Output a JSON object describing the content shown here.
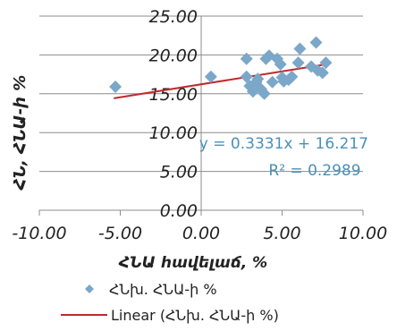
{
  "chart_data": {
    "type": "scatter",
    "xlabel": "ՀՆԱ հավելաճ, %",
    "ylabel": "ՀՆ, ՀՆԱ-ի %",
    "xlim": [
      -10,
      10
    ],
    "ylim": [
      0,
      25
    ],
    "x_ticks": [
      -10,
      -5,
      0,
      5,
      10
    ],
    "y_ticks": [
      0,
      5,
      10,
      15,
      20,
      25
    ],
    "x_tick_labels": [
      "-10.00",
      "-5.00",
      "0.00",
      "5.00",
      "10.00"
    ],
    "y_tick_labels": [
      "0.00",
      "5.00",
      "10.00",
      "15.00",
      "20.00",
      "25.00"
    ],
    "grid": "horizontal",
    "legend_placement": "bottom",
    "series": [
      {
        "name": "ՀՆխ. ՀՆԱ-ի %",
        "type": "scatter",
        "marker": "diamond",
        "color": "#7ba7c9",
        "points": [
          [
            -5.3,
            15.9
          ],
          [
            0.6,
            17.2
          ],
          [
            2.8,
            19.5
          ],
          [
            2.8,
            17.2
          ],
          [
            3.0,
            16.0
          ],
          [
            3.2,
            15.3
          ],
          [
            3.4,
            16.5
          ],
          [
            3.5,
            16.9
          ],
          [
            3.7,
            15.6
          ],
          [
            3.9,
            15.0
          ],
          [
            4.0,
            19.5
          ],
          [
            4.2,
            19.9
          ],
          [
            4.4,
            16.5
          ],
          [
            4.7,
            19.5
          ],
          [
            4.9,
            18.8
          ],
          [
            5.0,
            17.1
          ],
          [
            5.1,
            16.6
          ],
          [
            5.4,
            16.8
          ],
          [
            5.6,
            17.2
          ],
          [
            6.0,
            19.0
          ],
          [
            6.1,
            20.8
          ],
          [
            6.8,
            18.5
          ],
          [
            7.1,
            21.6
          ],
          [
            7.2,
            18.0
          ],
          [
            7.5,
            17.7
          ],
          [
            7.7,
            19.0
          ]
        ]
      },
      {
        "name": "Linear (ՀՆխ. ՀՆԱ-ի %)",
        "type": "line",
        "color": "#c0292b",
        "x": [
          -5.4,
          7.6
        ],
        "slope": 0.3331,
        "intercept": 16.217
      }
    ],
    "annotations": {
      "equation": "y = 0.3331x + 16.217",
      "r_squared": "R² = 0.2989"
    }
  }
}
